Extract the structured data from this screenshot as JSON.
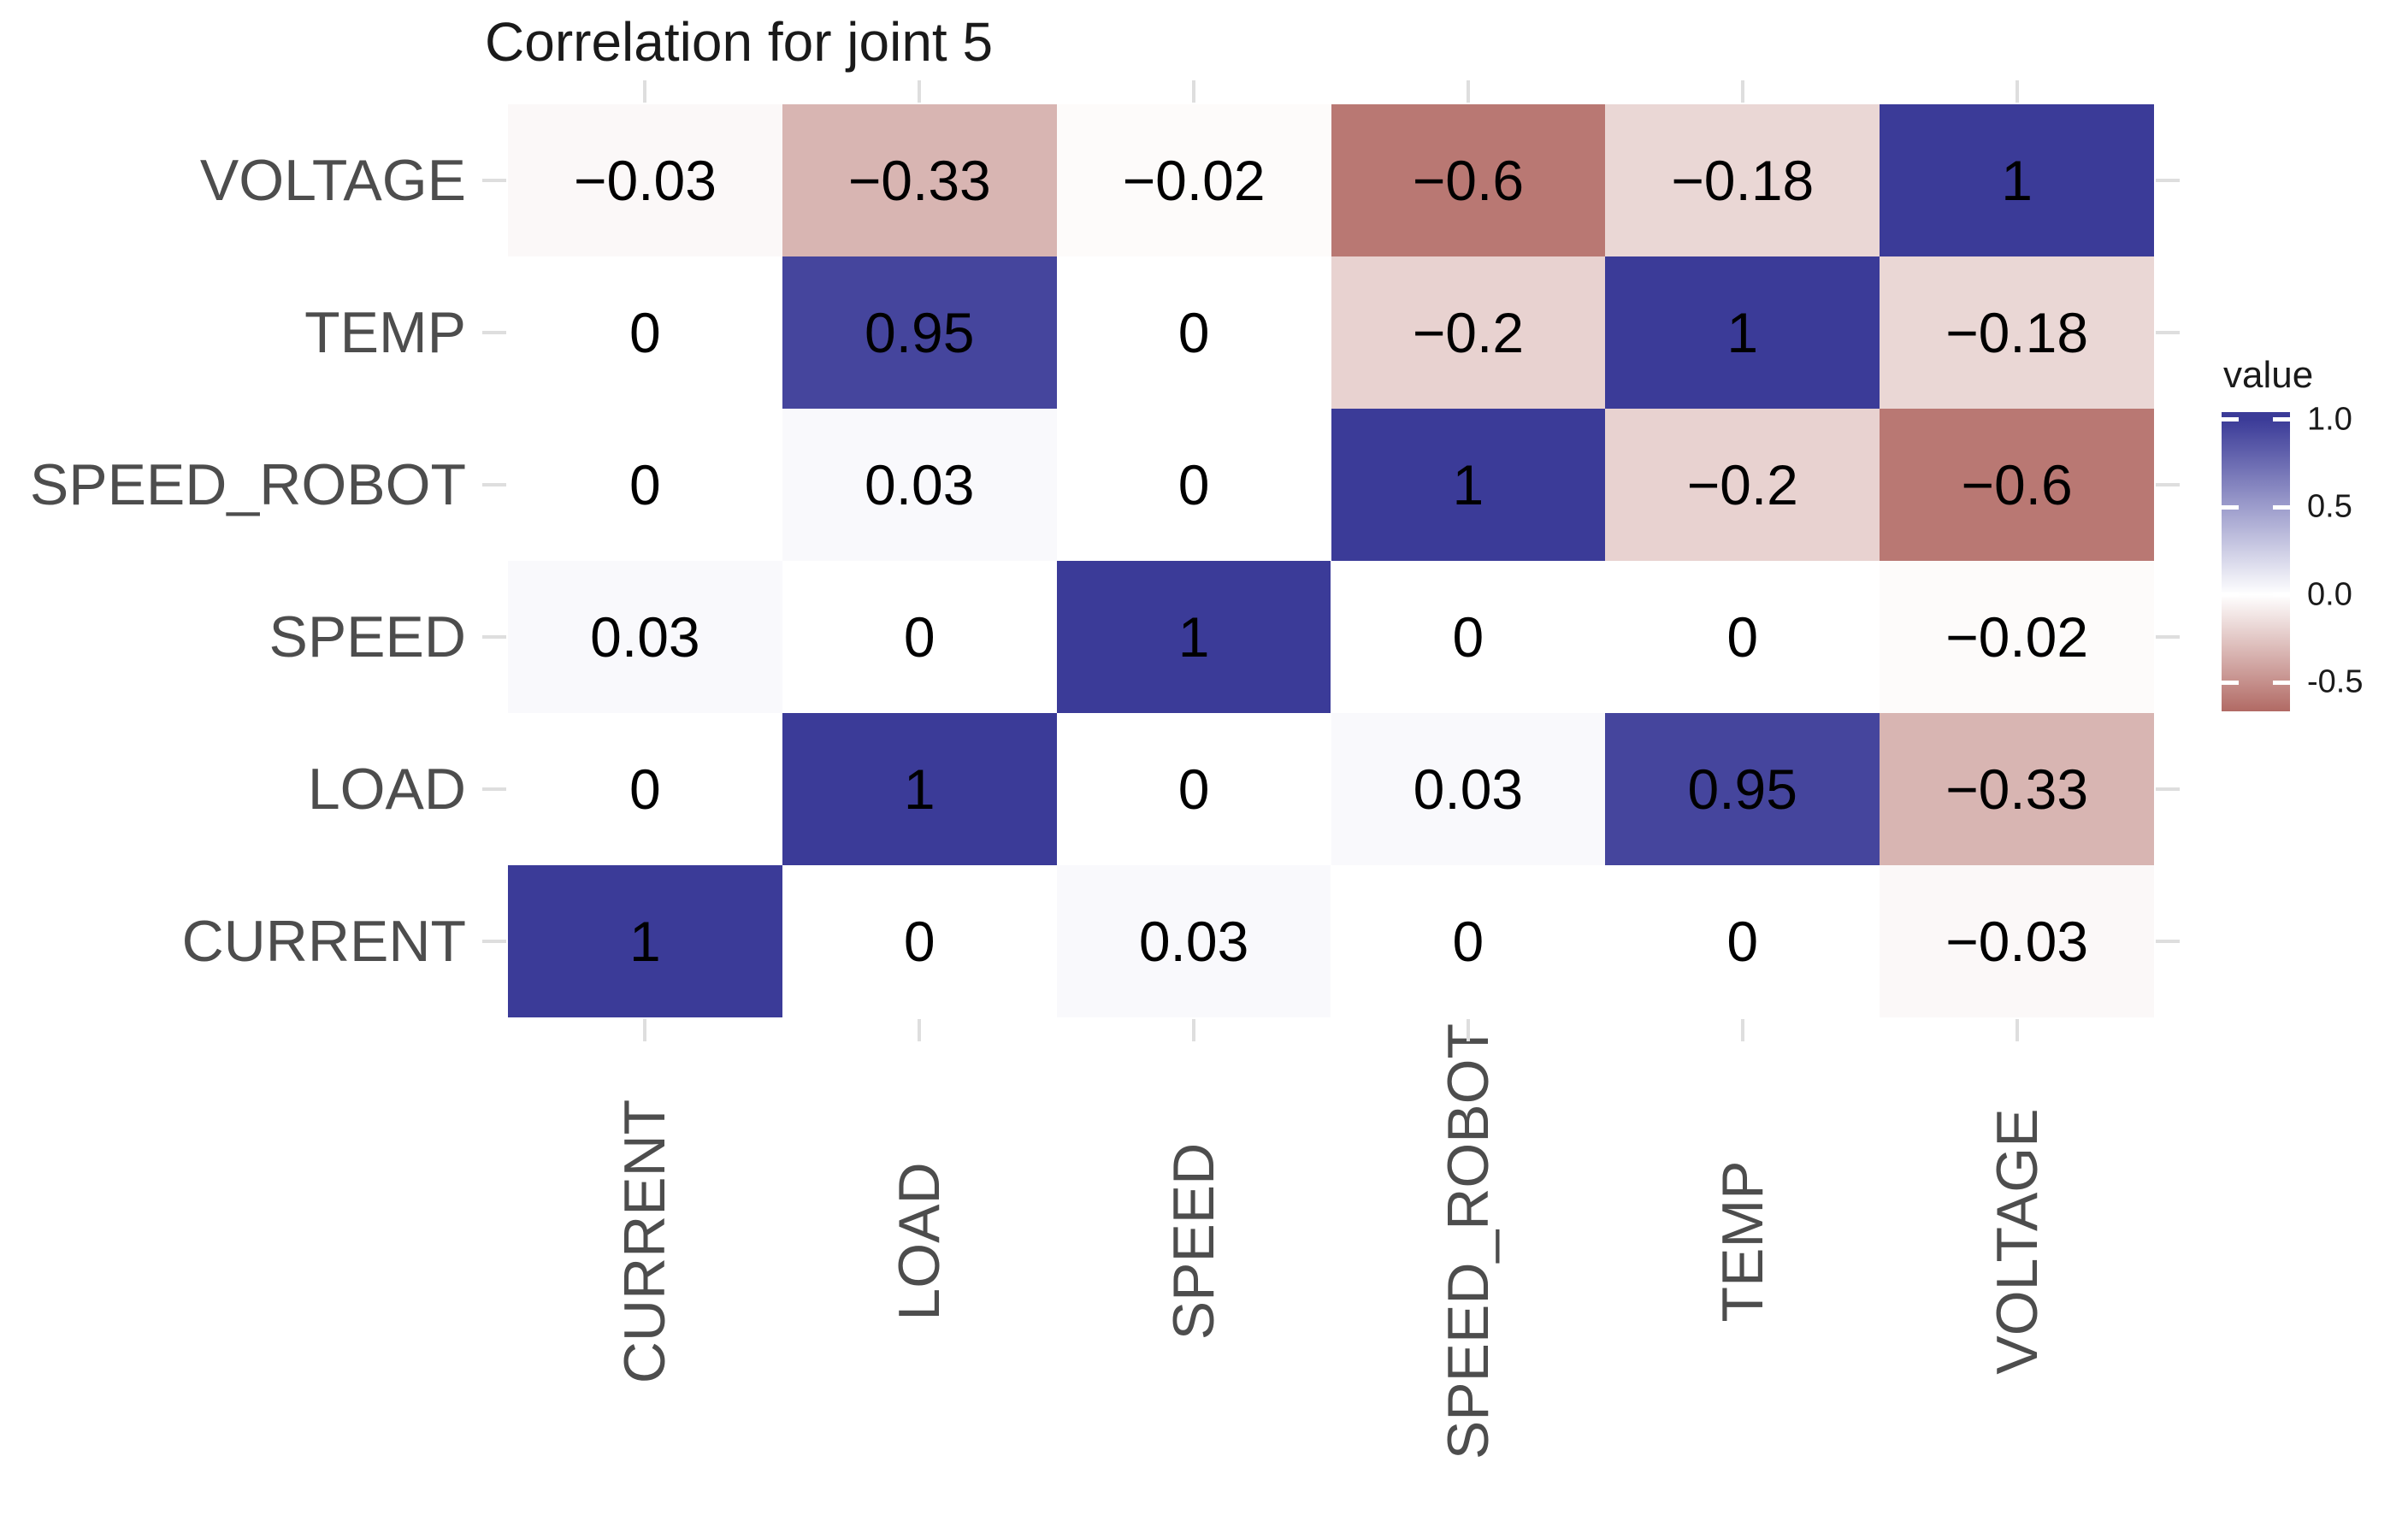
{
  "title": "Correlation for joint 5",
  "chart_data": {
    "type": "heatmap",
    "title": "Correlation for joint 5",
    "x_categories": [
      "CURRENT",
      "LOAD",
      "SPEED",
      "SPEED_ROBOT",
      "TEMP",
      "VOLTAGE"
    ],
    "y_categories": [
      "VOLTAGE",
      "TEMP",
      "SPEED_ROBOT",
      "SPEED",
      "LOAD",
      "CURRENT"
    ],
    "matrix": [
      [
        -0.03,
        -0.33,
        -0.02,
        -0.6,
        -0.18,
        1
      ],
      [
        0,
        0.95,
        0,
        -0.2,
        1,
        -0.18
      ],
      [
        0,
        0.03,
        0,
        1,
        -0.2,
        -0.6
      ],
      [
        0.03,
        0,
        1,
        0,
        0,
        -0.02
      ],
      [
        0,
        1,
        0,
        0.03,
        0.95,
        -0.33
      ],
      [
        1,
        0,
        0.03,
        0,
        0,
        -0.03
      ]
    ],
    "value_range": [
      -1,
      1
    ],
    "legend": {
      "title": "value",
      "tick_labels": [
        "1.0",
        "0.5",
        "0.0",
        "-0.5"
      ],
      "tick_values": [
        1.0,
        0.5,
        0.0,
        -0.5
      ],
      "bar_top_value": 1.043,
      "bar_bottom_value": -0.664,
      "position": "right"
    },
    "colors": {
      "high": "#3B3B98",
      "mid": "#FFFFFF",
      "low": "#8A1E16",
      "axis_text": "#4D4D4D",
      "tick_mark": "#DEDEDE",
      "cell_text": "#000000",
      "title_text": "#1A1A1A"
    },
    "layout": {
      "grid": "off",
      "cell_value_labels": "on",
      "x_label_rotation_deg": -90
    }
  }
}
